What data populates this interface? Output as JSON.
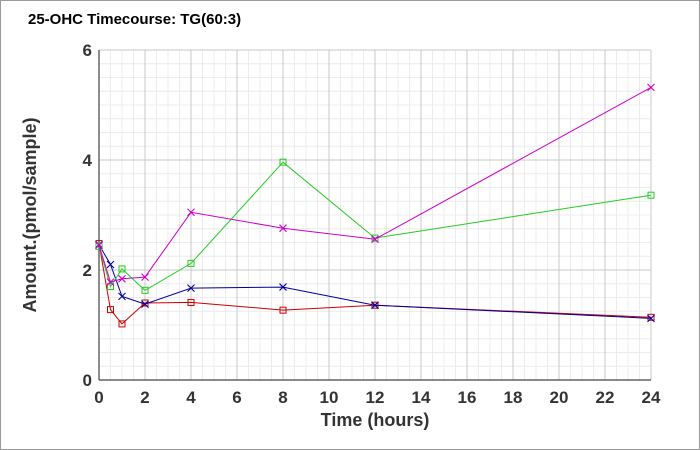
{
  "chart_data": {
    "type": "line",
    "title": "25-OHC Timecourse: TG(60:3)",
    "xlabel": "Time (hours)",
    "ylabel": "Amount.(pmol/sample)",
    "xlim": [
      0,
      24
    ],
    "ylim": [
      0,
      6
    ],
    "x_ticks": [
      "0",
      "2",
      "4",
      "6",
      "8",
      "10",
      "12",
      "14",
      "16",
      "18",
      "20",
      "22",
      "24"
    ],
    "y_ticks": [
      "0",
      "2",
      "4",
      "6"
    ],
    "grid": true,
    "legend": "none",
    "series": [
      {
        "color": "#cc0000",
        "marker": "square",
        "points": [
          [
            0,
            2.48
          ],
          [
            0.5,
            1.28
          ],
          [
            1,
            1.02
          ],
          [
            2,
            1.4
          ],
          [
            4,
            1.41
          ],
          [
            8,
            1.27
          ],
          [
            12,
            1.36
          ],
          [
            24,
            1.14
          ]
        ]
      },
      {
        "color": "#000099",
        "marker": "x",
        "points": [
          [
            0,
            2.46
          ],
          [
            0.5,
            2.1
          ],
          [
            1,
            1.52
          ],
          [
            2,
            1.38
          ],
          [
            4,
            1.67
          ],
          [
            8,
            1.69
          ],
          [
            12,
            1.36
          ],
          [
            24,
            1.12
          ]
        ]
      },
      {
        "color": "#22cc22",
        "marker": "square",
        "points": [
          [
            0,
            2.43
          ],
          [
            0.5,
            1.7
          ],
          [
            1,
            2.02
          ],
          [
            2,
            1.63
          ],
          [
            4,
            2.12
          ],
          [
            8,
            3.96
          ],
          [
            12,
            2.58
          ],
          [
            24,
            3.36
          ]
        ]
      },
      {
        "color": "#cc00cc",
        "marker": "x",
        "points": [
          [
            0,
            2.45
          ],
          [
            0.5,
            1.78
          ],
          [
            1,
            1.84
          ],
          [
            2,
            1.87
          ],
          [
            4,
            3.05
          ],
          [
            8,
            2.76
          ],
          [
            12,
            2.56
          ],
          [
            24,
            5.32
          ]
        ]
      }
    ]
  }
}
